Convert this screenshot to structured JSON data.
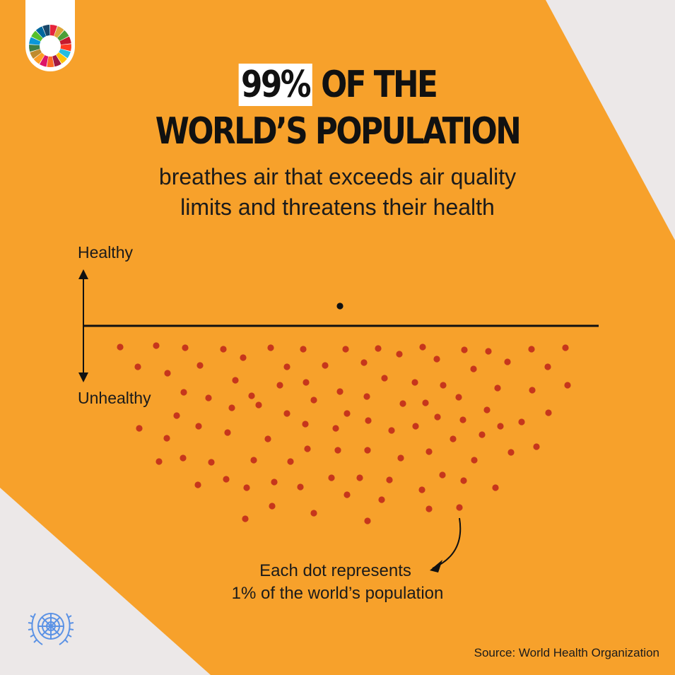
{
  "headline": {
    "highlight": "99%",
    "rest_line1": "OF THE",
    "line2": "WORLD’S POPULATION"
  },
  "subheadline": {
    "line1": "breathes air that exceeds air quality",
    "line2": "limits and threatens their health"
  },
  "axis": {
    "top_label": "Healthy",
    "bottom_label": "Unhealthy"
  },
  "chart_data": {
    "type": "dot-matrix",
    "unit": "1% of the world’s population",
    "total_dots": 100,
    "series": [
      {
        "name": "Healthy",
        "count": 1,
        "color": "#111111"
      },
      {
        "name": "Unhealthy",
        "count": 99,
        "color": "#c6361c"
      }
    ]
  },
  "note": {
    "line1": "Each dot represents",
    "line2": "1% of the world’s population"
  },
  "source": "Source: World Health Organization",
  "colors": {
    "background_orange": "#f7a12b",
    "background_grey": "#ece8e8",
    "dot_red": "#c6361c",
    "text_dark": "#111111",
    "highlight_white": "#ffffff"
  },
  "icons": {
    "sdg_logo": "sdg-wheel-icon",
    "un_logo": "un-emblem-icon"
  }
}
